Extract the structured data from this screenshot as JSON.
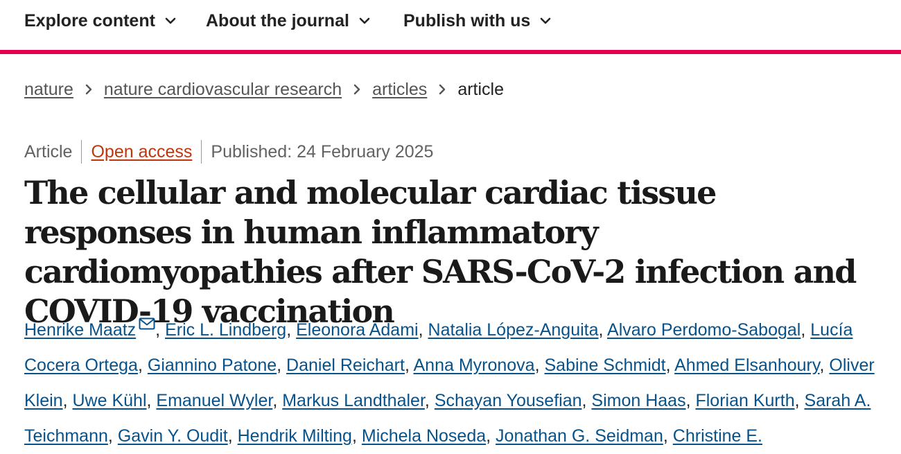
{
  "nav": {
    "items": [
      {
        "label": "Explore content",
        "icon": "chevron-down-icon"
      },
      {
        "label": "About the journal",
        "icon": "chevron-down-icon"
      },
      {
        "label": "Publish with us",
        "icon": "chevron-down-icon"
      }
    ],
    "accent_color": "#e5004f"
  },
  "breadcrumb": {
    "items": [
      "nature",
      "nature cardiovascular research",
      "articles"
    ],
    "current": "article"
  },
  "article": {
    "type": "Article",
    "access": "Open access",
    "published": "Published: 24 February 2025",
    "title": "The cellular and molecular cardiac tissue responses in human inflammatory cardiomyopathies after SARS-CoV-2 infection and COVID-19 vaccination"
  },
  "authors": [
    "Henrike Maatz",
    "Eric L. Lindberg",
    "Eleonora Adami",
    "Natalia López-Anguita",
    "Alvaro Perdomo-Sabogal",
    "Lucía Cocera Ortega",
    "Giannino Patone",
    "Daniel Reichart",
    "Anna Myronova",
    "Sabine Schmidt",
    "Ahmed Elsanhoury",
    "Oliver Klein",
    "Uwe Kühl",
    "Emanuel Wyler",
    "Markus Landthaler",
    "Schayan Yousefian",
    "Simon Haas",
    "Florian Kurth",
    "Sarah A. Teichmann",
    "Gavin Y. Oudit",
    "Hendrik Milting",
    "Michela Noseda",
    "Jonathan G. Seidman",
    "Christine E."
  ],
  "author_link_color": "#07528a",
  "open_access_color": "#c0360c"
}
